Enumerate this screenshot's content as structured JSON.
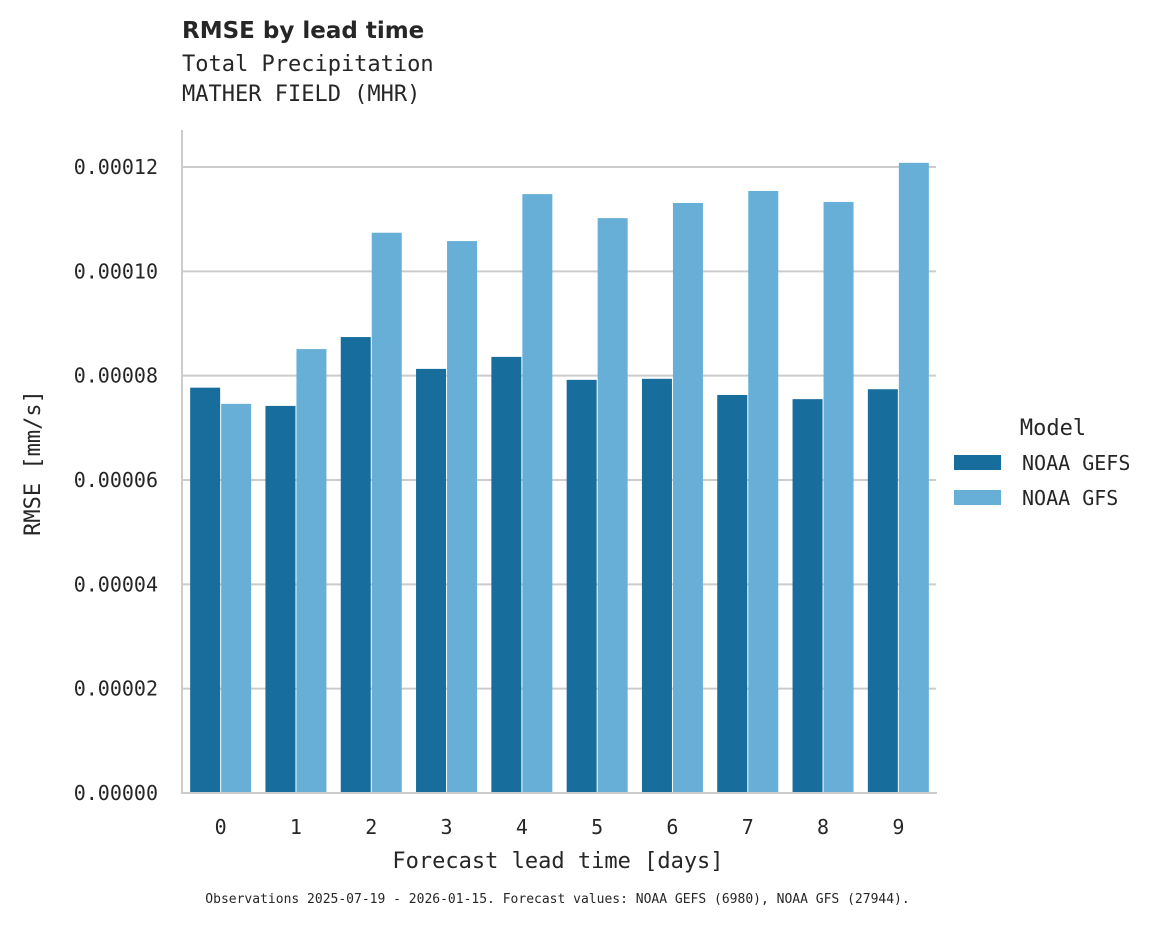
{
  "chart_data": {
    "type": "bar",
    "title": "RMSE by lead time",
    "subtitle_lines": [
      "Total Precipitation",
      "MATHER FIELD (MHR)"
    ],
    "xlabel": "Forecast lead time [days]",
    "ylabel": "RMSE [mm/s]",
    "categories": [
      "0",
      "1",
      "2",
      "3",
      "4",
      "5",
      "6",
      "7",
      "8",
      "9"
    ],
    "series": [
      {
        "name": "NOAA GEFS",
        "color": "#176d9c",
        "values": [
          7.77e-05,
          7.42e-05,
          8.74e-05,
          8.13e-05,
          8.36e-05,
          7.92e-05,
          7.94e-05,
          7.63e-05,
          7.55e-05,
          7.74e-05
        ]
      },
      {
        "name": "NOAA GFS",
        "color": "#67afd7",
        "values": [
          7.46e-05,
          8.51e-05,
          0.0001074,
          0.0001058,
          0.0001148,
          0.0001102,
          0.0001131,
          0.0001154,
          0.0001133,
          0.0001208
        ]
      }
    ],
    "yticks": [
      "0.00000",
      "0.00002",
      "0.00004",
      "0.00006",
      "0.00008",
      "0.00010",
      "0.00012"
    ],
    "ylim": [
      0,
      0.000127
    ],
    "grid": "horizontal",
    "legend": {
      "title": "Model",
      "position": "right"
    },
    "footnote": "Observations 2025-07-19 - 2026-01-15. Forecast values: NOAA GEFS (6980), NOAA GFS (27944)."
  }
}
